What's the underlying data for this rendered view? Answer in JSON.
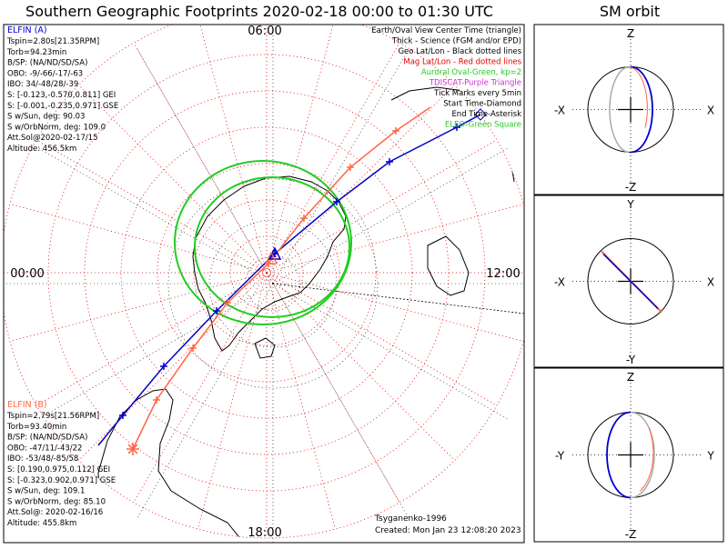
{
  "title": "Southern Geographic Footprints 2020-02-18 00:00 to 01:30 UTC",
  "orbit_title": "SM orbit",
  "map": {
    "time_labels": {
      "top": "06:00",
      "left": "00:00",
      "right": "12:00",
      "bottom": "18:00"
    },
    "legend": [
      {
        "text": "Earth/Oval View Center Time (triangle)",
        "color": "#000000"
      },
      {
        "text": "Thick - Science (FGM and/or EPD)",
        "color": "#000000"
      },
      {
        "text": "Geo Lat/Lon - Black dotted lines",
        "color": "#000000"
      },
      {
        "text": "Mag Lat/Lon - Red dotted lines",
        "color": "#e00000"
      },
      {
        "text": "Auroral Oval-Green, kp=2",
        "color": "#22cc22"
      },
      {
        "text": "TDISCAT-Purple Triangle",
        "color": "#cc33cc"
      },
      {
        "text": "Tick Marks every 5min",
        "color": "#000000"
      },
      {
        "text": "Start Time-Diamond",
        "color": "#000000"
      },
      {
        "text": "End Time-Asterisk",
        "color": "#000000"
      },
      {
        "text": "ELEO-Green Square",
        "color": "#22cc22"
      }
    ],
    "elfin_a": {
      "name": "ELFIN (A)",
      "color": "#0000cc",
      "lines": [
        "Tspin=2.80s[21.35RPM]",
        "Torb=94.23min",
        "B/SP: (NA/ND/SD/SA)",
        "OBO: -9/-66/-17/-63",
        "IBO: 34/-48/28/-39",
        "S: [-0.123,-0.570,0.811] GEI",
        "S: [-0.001,-0.235,0.971] GSE",
        "S w/Sun, deg: 90.03",
        "S w/OrbNorm, deg: 109.0",
        "Att.Sol@2020-02-17/15",
        "Altitude: 456.5km"
      ]
    },
    "elfin_b": {
      "name": "ELFIN (B)",
      "color": "#ff6644",
      "lines": [
        "Tspin=2.79s[21.56RPM]",
        "Torb=93.40min",
        "B/SP: (NA/ND/SD/SA)",
        "OBO: -47/11/-43/22",
        "IBO: -53/48/-85/58",
        "S: [0.190,0.975,0.112] GEI",
        "S: [-0.323,0.902,0.971] GSE",
        "S w/Sun, deg: 109.1",
        "S w/OrbNorm, deg: 85.10",
        "Att.Sol@: 2020-02-16/16",
        "Altitude: 455.8km"
      ]
    },
    "model_label": "Tsyganenko-1996",
    "created_label": "Created: Mon Jan 23 12:08:20 2023"
  },
  "orbit_panels": [
    {
      "top": "Z",
      "bottom": "-Z",
      "left": "-X",
      "right": "X"
    },
    {
      "top": "Y",
      "bottom": "-Y",
      "left": "-X",
      "right": "X"
    },
    {
      "top": "Z",
      "bottom": "-Z",
      "left": "-Y",
      "right": "Y"
    }
  ],
  "colors": {
    "elfin_a": "#0000cc",
    "elfin_b": "#ff6644",
    "oval": "#22cc22",
    "mag_grid": "#e00000",
    "geo_grid": "#000000"
  }
}
